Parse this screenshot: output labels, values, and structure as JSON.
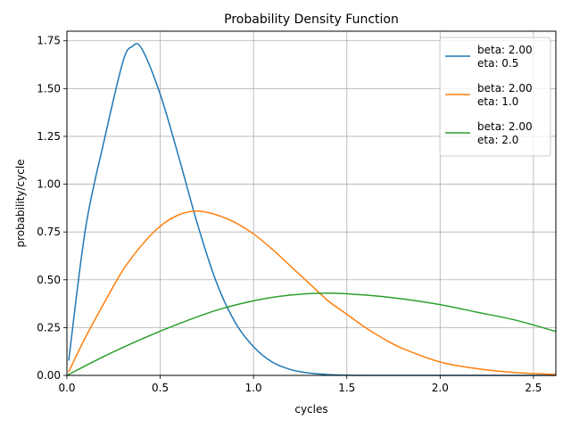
{
  "chart_data": {
    "type": "line",
    "title": "Probability Density Function",
    "xlabel": "cycles",
    "ylabel": "probability/cycle",
    "xlim": [
      0,
      2.62
    ],
    "ylim": [
      0,
      1.8
    ],
    "xticks": [
      0,
      0.5,
      1.0,
      1.5,
      2.0,
      2.5
    ],
    "xtick_labels": [
      "0.0",
      "0.5",
      "1.0",
      "1.5",
      "2.0",
      "2.5"
    ],
    "yticks": [
      0,
      0.25,
      0.5,
      0.75,
      1.0,
      1.25,
      1.5,
      1.75
    ],
    "ytick_labels": [
      "0.00",
      "0.25",
      "0.50",
      "0.75",
      "1.00",
      "1.25",
      "1.50",
      "1.75"
    ],
    "grid": true,
    "legend_position": "top-right",
    "series": [
      {
        "name": "beta: 2.00\neta: 0.5",
        "legend_lines": [
          "beta: 2.00",
          "eta: 0.5"
        ],
        "color": "#1f77b4",
        "x": [
          0.01,
          0.1,
          0.2,
          0.3,
          0.35,
          0.4,
          0.5,
          0.6,
          0.7,
          0.8,
          0.9,
          1.0,
          1.1,
          1.2,
          1.3,
          1.4,
          1.5,
          1.6,
          1.8,
          2.0,
          2.62
        ],
        "y": [
          0.08,
          0.77,
          1.23,
          1.64,
          1.72,
          1.71,
          1.47,
          1.14,
          0.79,
          0.49,
          0.28,
          0.15,
          0.07,
          0.03,
          0.012,
          0.004,
          0.001,
          0.0,
          0.0,
          0.0,
          0.0
        ]
      },
      {
        "name": "beta: 2.00\neta: 1.0",
        "legend_lines": [
          "beta: 2.00",
          "eta: 1.0"
        ],
        "color": "#ff7f0e",
        "x": [
          0.01,
          0.1,
          0.2,
          0.3,
          0.4,
          0.5,
          0.6,
          0.7,
          0.8,
          0.9,
          1.0,
          1.1,
          1.2,
          1.3,
          1.4,
          1.5,
          1.6,
          1.7,
          1.8,
          2.0,
          2.2,
          2.4,
          2.62
        ],
        "y": [
          0.02,
          0.2,
          0.38,
          0.55,
          0.68,
          0.78,
          0.84,
          0.86,
          0.84,
          0.8,
          0.74,
          0.66,
          0.57,
          0.48,
          0.39,
          0.32,
          0.25,
          0.19,
          0.14,
          0.07,
          0.035,
          0.015,
          0.005
        ]
      },
      {
        "name": "beta: 2.00\neta: 2.0",
        "legend_lines": [
          "beta: 2.00",
          "eta: 2.0"
        ],
        "color": "#2ca02c",
        "x": [
          0.0,
          0.2,
          0.4,
          0.6,
          0.8,
          1.0,
          1.2,
          1.4,
          1.6,
          1.8,
          2.0,
          2.2,
          2.4,
          2.62
        ],
        "y": [
          0.0,
          0.1,
          0.19,
          0.27,
          0.34,
          0.39,
          0.42,
          0.43,
          0.42,
          0.4,
          0.37,
          0.33,
          0.29,
          0.23
        ]
      }
    ]
  }
}
